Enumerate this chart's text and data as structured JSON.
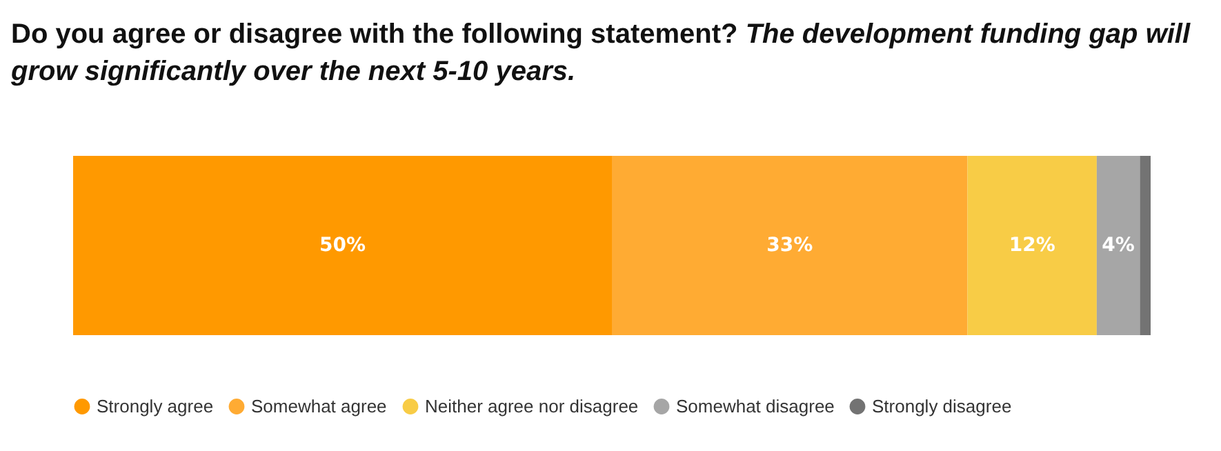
{
  "chart_data": {
    "type": "bar",
    "title": "Do you agree or disagree with the following statement?",
    "subtitle": "The development funding gap will grow significantly over the next 5-10 years.",
    "orientation": "horizontal",
    "stacked": true,
    "categories": [
      null
    ],
    "tick_labels": false,
    "grid": false,
    "legend": "bottom",
    "series": [
      {
        "name": "Strongly agree",
        "color": "#ff9900",
        "values": [
          50
        ],
        "value_labels": [
          "50%"
        ]
      },
      {
        "name": "Somewhat agree",
        "color": "#ffab33",
        "values": [
          33
        ],
        "value_labels": [
          "33%"
        ]
      },
      {
        "name": "Neither agree nor disagree",
        "color": "#f8cc46",
        "values": [
          12
        ],
        "value_labels": [
          "12%"
        ]
      },
      {
        "name": "Somewhat disagree",
        "color": "#a6a6a6",
        "values": [
          4
        ],
        "value_labels": [
          "4%"
        ]
      },
      {
        "name": "Strongly disagree",
        "color": "#737373",
        "values": [
          1
        ],
        "value_labels": [
          null
        ]
      }
    ]
  }
}
